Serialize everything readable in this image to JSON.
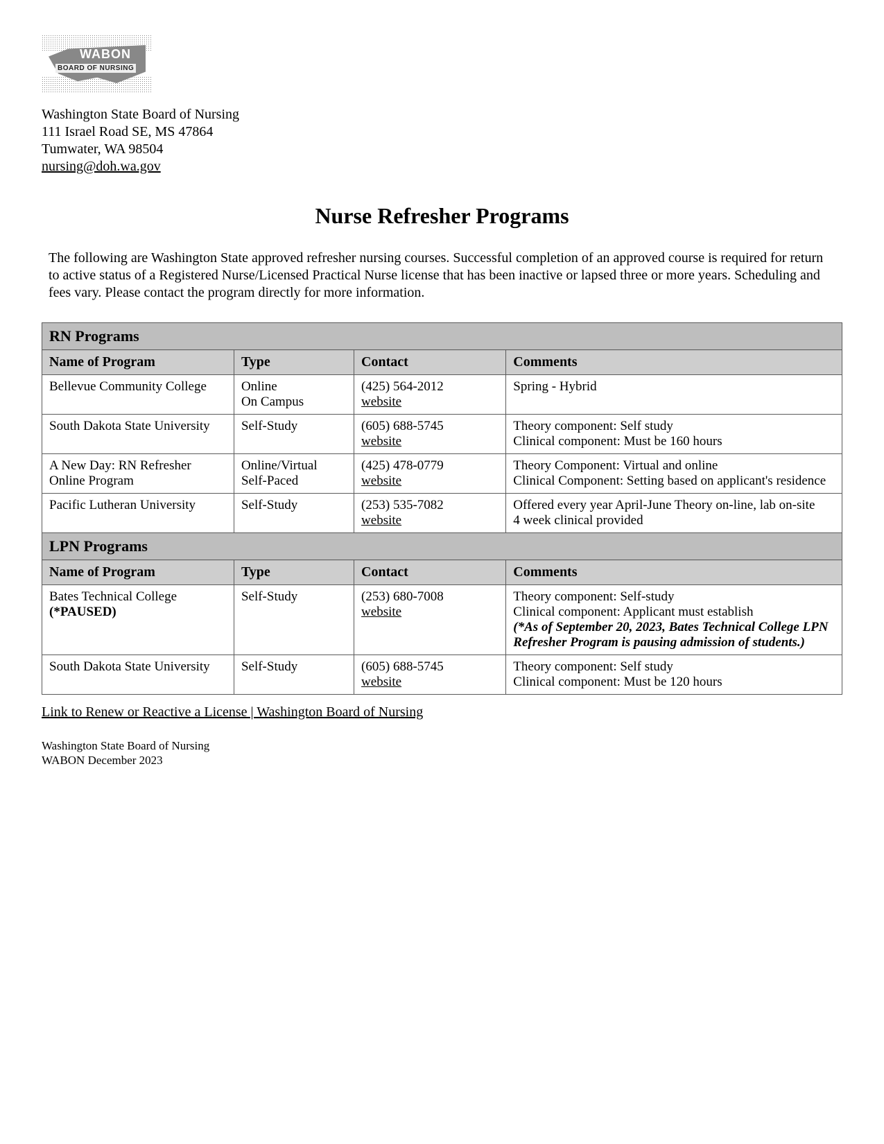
{
  "header": {
    "logo_text1": "WABON",
    "logo_text2": "BOARD OF NURSING",
    "org_name": "Washington State Board of Nursing",
    "address_line1": "111 Israel Road SE, MS 47864",
    "address_line2": "Tumwater, WA 98504",
    "email": "nursing@doh.wa.gov"
  },
  "title": "Nurse Refresher Programs",
  "intro": "The following are Washington State approved refresher nursing courses. Successful completion of an approved course is required for return to active status of a Registered Nurse/Licensed Practical Nurse license that has been inactive or lapsed three or more years. Scheduling and fees vary. Please contact the program directly for more information.",
  "columns": {
    "name": "Name of Program",
    "type": "Type",
    "contact": "Contact",
    "comments": "Comments"
  },
  "website_label": "website",
  "sections": [
    {
      "title": "RN Programs",
      "rows": [
        {
          "name": "Bellevue Community College",
          "type": "Online\nOn Campus",
          "phone": "(425) 564-2012",
          "comments": "Spring - Hybrid"
        },
        {
          "name": "South Dakota State University",
          "type": "Self-Study",
          "phone": "(605) 688-5745",
          "comments": "Theory component: Self study\nClinical component: Must be 160 hours"
        },
        {
          "name": "A New Day: RN Refresher Online Program",
          "type": "Online/Virtual\nSelf-Paced",
          "phone": "(425) 478-0779",
          "comments": "Theory Component: Virtual and online\nClinical Component: Setting based on applicant's residence"
        },
        {
          "name": "Pacific Lutheran University",
          "type": "Self-Study",
          "phone": "(253) 535-7082",
          "comments": "Offered every year April-June Theory on-line, lab on-site\n4 week clinical provided"
        }
      ]
    },
    {
      "title": "LPN Programs",
      "rows": [
        {
          "name": "Bates Technical College",
          "name_suffix": "(*PAUSED)",
          "type": "Self-Study",
          "phone": "(253) 680-7008",
          "comments": "Theory component: Self-study\nClinical component: Applicant must establish",
          "note": "(*As of September 20, 2023, Bates Technical College LPN Refresher Program is pausing admission of students.)"
        },
        {
          "name": "South Dakota State University",
          "type": "Self-Study",
          "phone": "(605) 688-5745",
          "comments": "Theory component: Self study\nClinical component: Must be 120 hours"
        }
      ]
    }
  ],
  "bottom_link": "Link to Renew or Reactive a License | Washington Board of Nursing",
  "footer": {
    "line1": "Washington State Board of Nursing",
    "line2": "WABON December 2023"
  },
  "colors": {
    "section_header_bg": "#c8c8c8",
    "column_header_bg": "#d8d8d8",
    "border": "#5a5a5a",
    "text": "#000000",
    "background": "#ffffff"
  }
}
